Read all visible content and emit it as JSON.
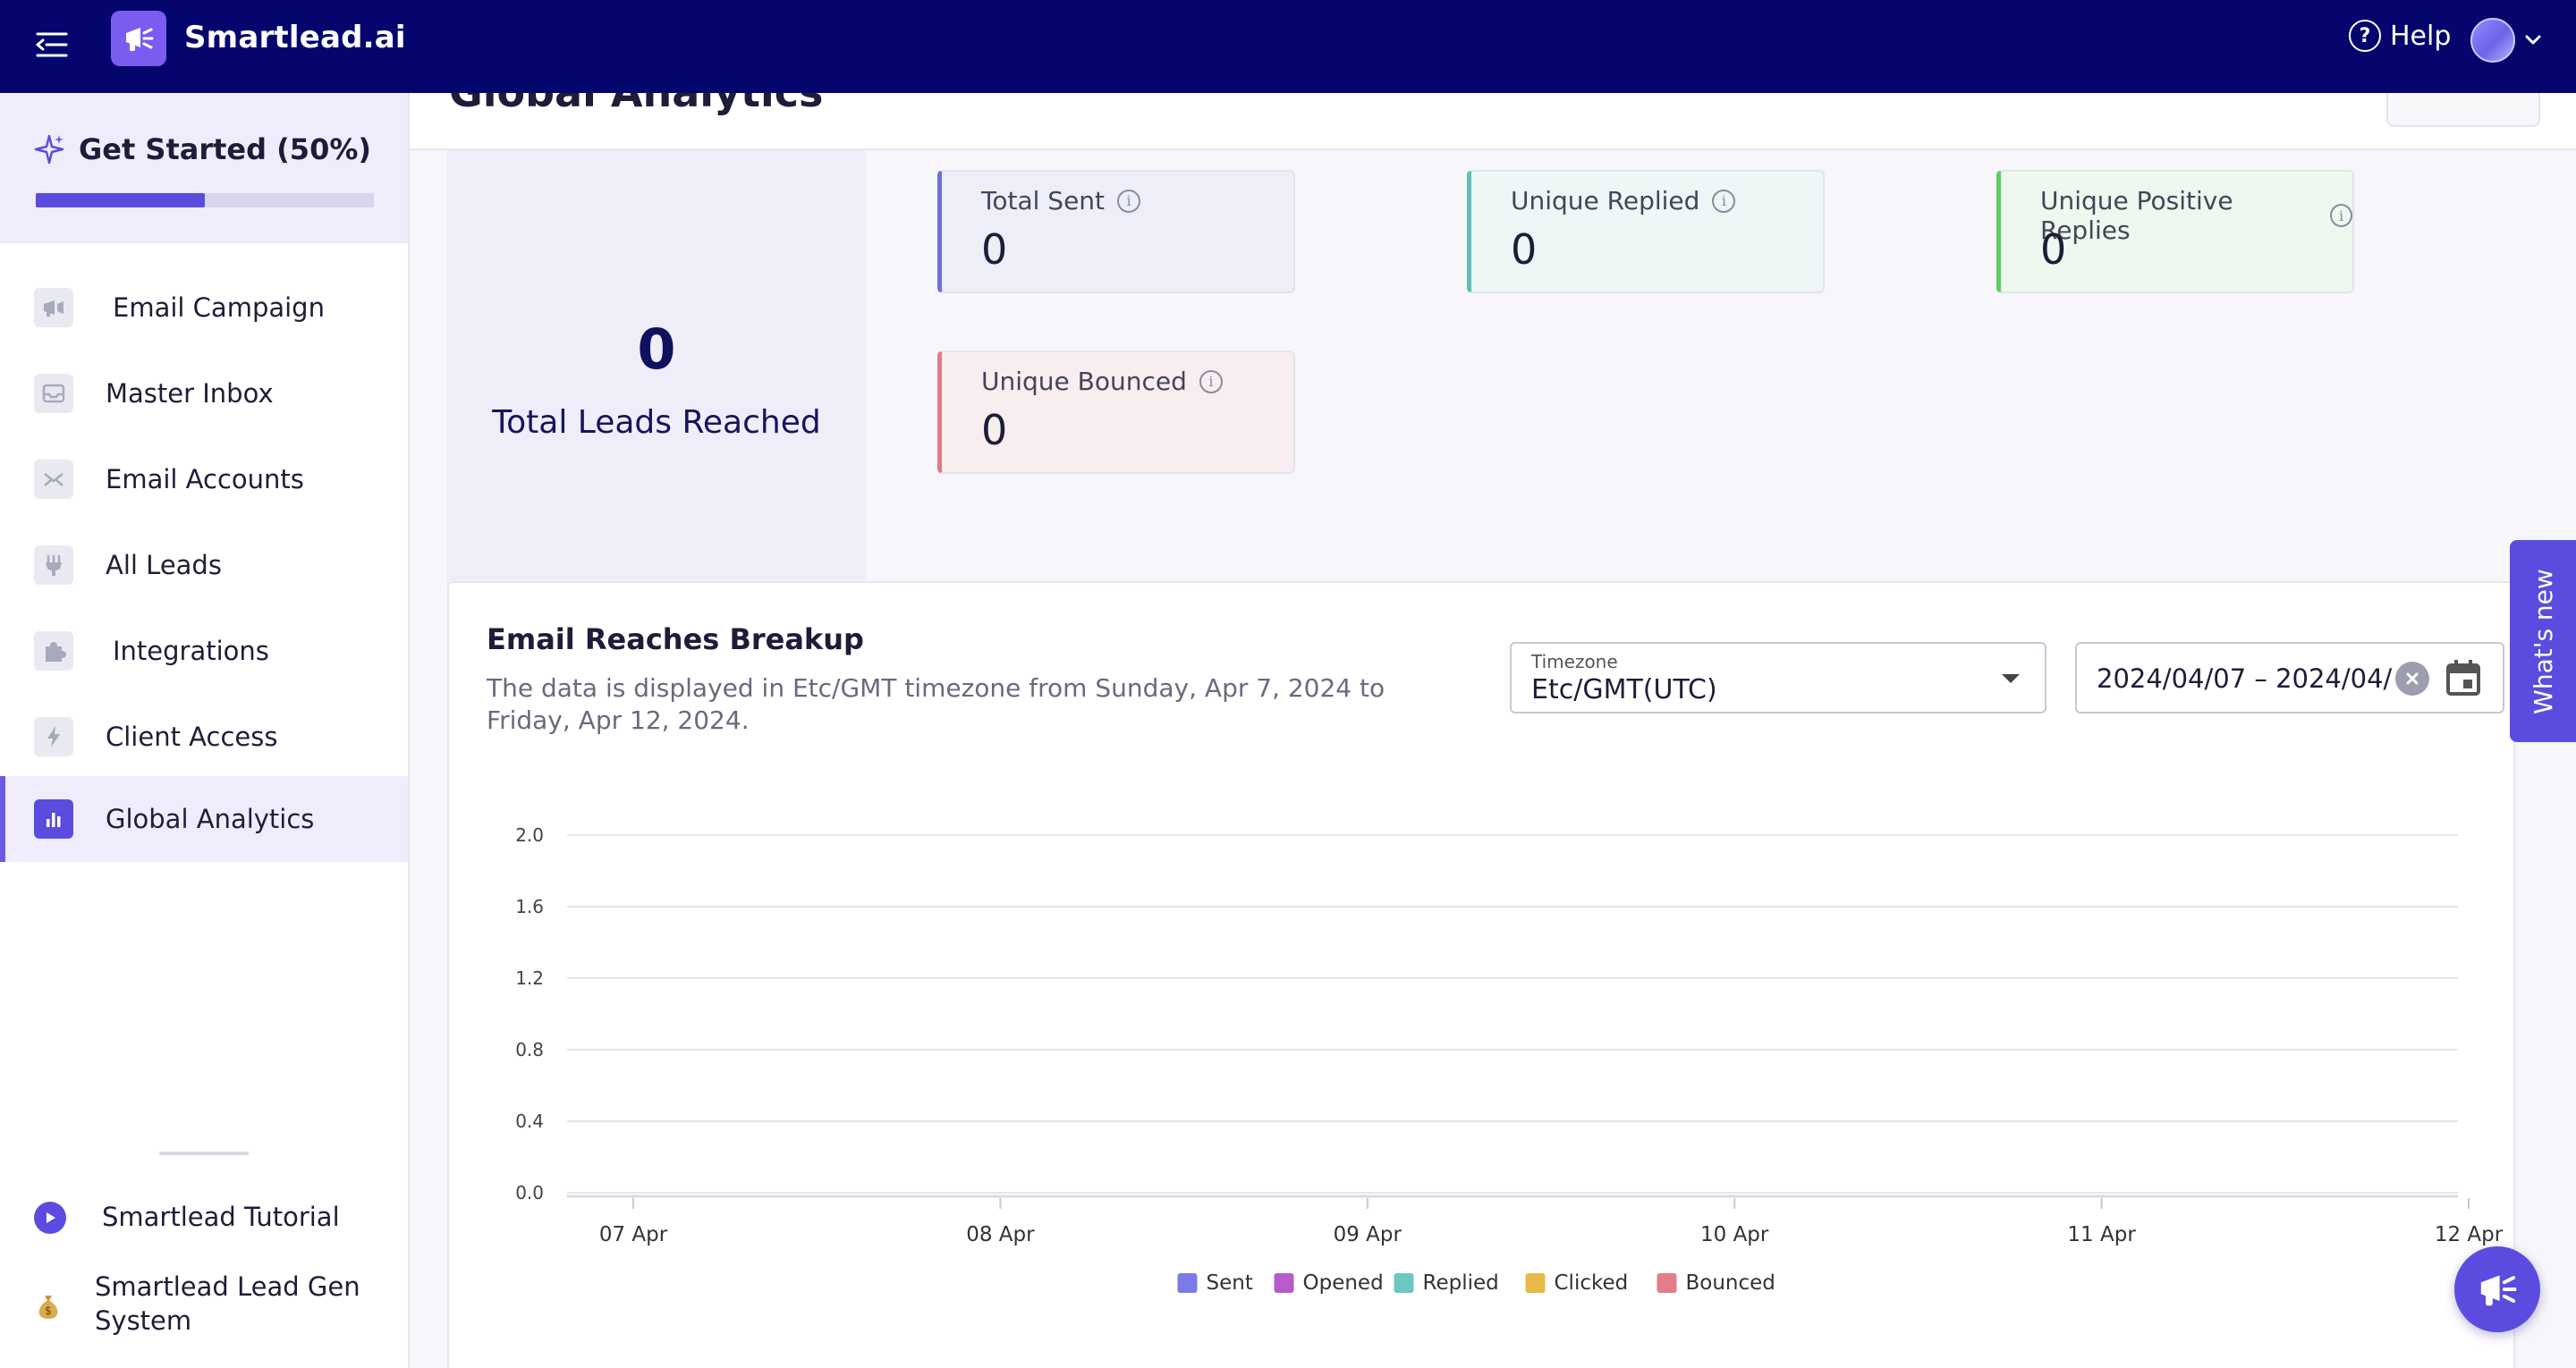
{
  "app": {
    "brand": "Smartlead.ai",
    "help_label": "Help"
  },
  "sidebar": {
    "get_started": {
      "title": "Get Started (50%)",
      "progress": 0.5
    },
    "items": [
      {
        "label": "Email Campaign",
        "icon": "megaphone-icon",
        "active": false
      },
      {
        "label": "Master Inbox",
        "icon": "inbox-icon",
        "active": false
      },
      {
        "label": "Email Accounts",
        "icon": "envelope-icon",
        "active": false
      },
      {
        "label": "All Leads",
        "icon": "leads-icon",
        "active": false
      },
      {
        "label": "Integrations",
        "icon": "puzzle-icon",
        "active": false
      },
      {
        "label": "Client Access",
        "icon": "bolt-icon",
        "active": false
      },
      {
        "label": "Global Analytics",
        "icon": "bar-chart-icon",
        "active": true
      }
    ],
    "bottom": [
      {
        "label": "Smartlead Tutorial",
        "icon": "play-icon"
      },
      {
        "label": "Smartlead Lead Gen System",
        "label_line1": "Smartlead Lead Gen",
        "label_line2": "System",
        "icon": "money-bag-icon"
      }
    ]
  },
  "page": {
    "title": "Global Analytics"
  },
  "stats": {
    "total_leads": {
      "value": "0",
      "label": "Total Leads Reached"
    },
    "cards": [
      {
        "label": "Total Sent",
        "value": "0",
        "accent": "#6b6fe0",
        "bg": "#eeeef9"
      },
      {
        "label": "Unique Replied",
        "value": "0",
        "accent": "#5fbfb8",
        "bg": "#eef6f6"
      },
      {
        "label": "Unique Positive Replies",
        "value": "0",
        "accent": "#5ccf5c",
        "bg": "#eef8ee"
      },
      {
        "label": "Unique Bounced",
        "value": "0",
        "accent": "#e07a88",
        "bg": "#f9eeef"
      }
    ]
  },
  "chart_section": {
    "title": "Email Reaches Breakup",
    "description": "The data is displayed in Etc/GMT timezone from Sunday, Apr 7, 2024 to Friday, Apr 12, 2024.",
    "timezone": {
      "label": "Timezone",
      "value": "Etc/GMT(UTC)"
    },
    "date_range": "2024/04/07 – 2024/04/"
  },
  "chart_data": {
    "type": "bar",
    "categories": [
      "07 Apr",
      "08 Apr",
      "09 Apr",
      "10 Apr",
      "11 Apr",
      "12 Apr"
    ],
    "series": [
      {
        "name": "Sent",
        "values": [
          0,
          0,
          0,
          0,
          0,
          0
        ],
        "color": "#7b7be8"
      },
      {
        "name": "Opened",
        "values": [
          0,
          0,
          0,
          0,
          0,
          0
        ],
        "color": "#b55cc9"
      },
      {
        "name": "Replied",
        "values": [
          0,
          0,
          0,
          0,
          0,
          0
        ],
        "color": "#6cc7c1"
      },
      {
        "name": "Clicked",
        "values": [
          0,
          0,
          0,
          0,
          0,
          0
        ],
        "color": "#e8b94a"
      },
      {
        "name": "Bounced",
        "values": [
          0,
          0,
          0,
          0,
          0,
          0
        ],
        "color": "#e27e8a"
      }
    ],
    "y_ticks": [
      "0.0",
      "0.4",
      "0.8",
      "1.2",
      "1.6",
      "2.0"
    ],
    "ylim": [
      0,
      2
    ],
    "grid": true,
    "legend": "bottom-center"
  },
  "whats_new": "What's new"
}
